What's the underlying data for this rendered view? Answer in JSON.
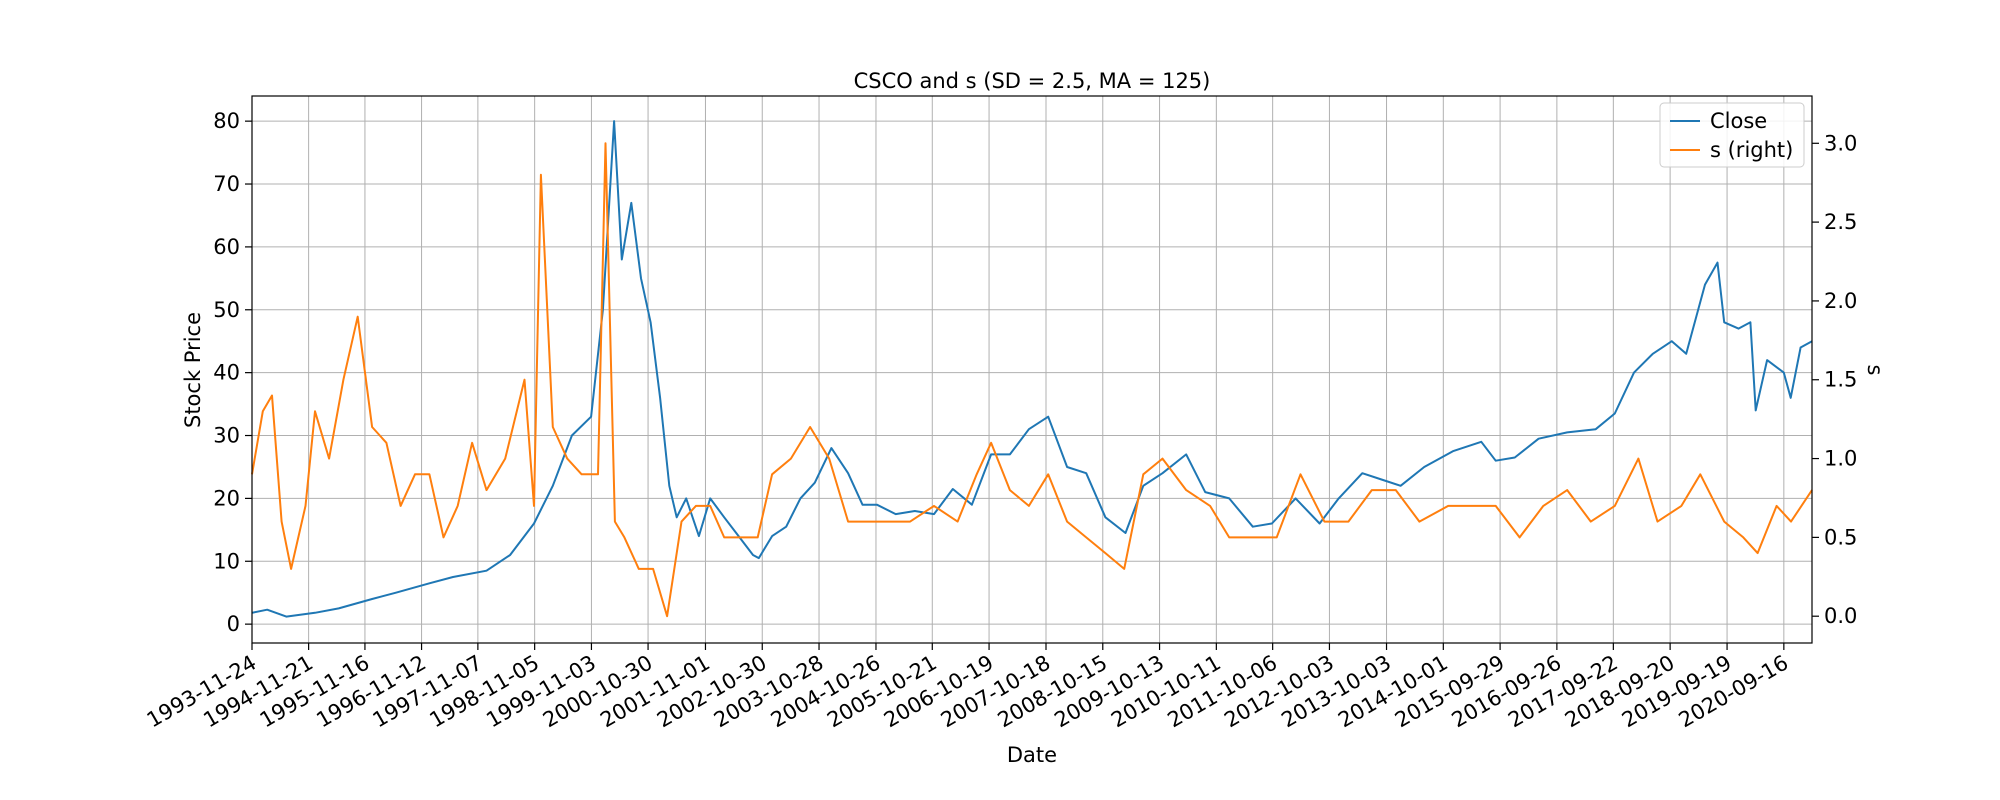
{
  "chart_data": {
    "type": "line",
    "title": "CSCO and s (SD = 2.5, MA = 125)",
    "xlabel": "Date",
    "ylabel": "Stock Price",
    "ylabel_right": "s",
    "xlim": [
      "1993-11-24",
      "2021-03-15"
    ],
    "ylim": [
      -3,
      84
    ],
    "ylim_right": [
      -0.17,
      3.3
    ],
    "y_ticks": [
      0,
      10,
      20,
      30,
      40,
      50,
      60,
      70,
      80
    ],
    "y_ticks_right": [
      0.0,
      0.5,
      1.0,
      1.5,
      2.0,
      2.5,
      3.0
    ],
    "y_tick_labels_right": [
      "0.0",
      "0.5",
      "1.0",
      "1.5",
      "2.0",
      "2.5",
      "3.0"
    ],
    "x_tick_labels": [
      "1993-11-24",
      "1994-11-21",
      "1995-11-16",
      "1996-11-12",
      "1997-11-07",
      "1998-11-05",
      "1999-11-03",
      "2000-10-30",
      "2001-11-01",
      "2002-10-30",
      "2003-10-28",
      "2004-10-26",
      "2005-10-21",
      "2006-10-19",
      "2007-10-18",
      "2008-10-15",
      "2009-10-13",
      "2010-10-11",
      "2011-10-06",
      "2012-10-03",
      "2013-10-03",
      "2014-10-01",
      "2015-09-29",
      "2016-09-26",
      "2017-09-22",
      "2018-09-20",
      "2019-09-19",
      "2020-09-16"
    ],
    "grid": true,
    "legend_position": "top-right",
    "series": [
      {
        "name": "Close",
        "axis": "left",
        "color": "#1f77b4",
        "x": [
          "1993-11-24",
          "1994-03-01",
          "1994-07-01",
          "1995-01-01",
          "1995-06-01",
          "1996-01-01",
          "1996-06-01",
          "1997-01-01",
          "1997-06-01",
          "1998-01-01",
          "1998-06-01",
          "1998-11-01",
          "1999-03-01",
          "1999-07-01",
          "1999-11-01",
          "2000-01-15",
          "2000-03-27",
          "2000-05-15",
          "2000-07-15",
          "2000-09-15",
          "2000-11-15",
          "2001-01-15",
          "2001-03-15",
          "2001-05-01",
          "2001-07-01",
          "2001-09-20",
          "2001-12-01",
          "2002-03-01",
          "2002-06-01",
          "2002-09-01",
          "2002-10-08",
          "2003-01-01",
          "2003-04-01",
          "2003-07-01",
          "2003-10-01",
          "2004-01-15",
          "2004-05-01",
          "2004-08-01",
          "2004-11-01",
          "2005-03-01",
          "2005-07-01",
          "2005-11-01",
          "2006-03-01",
          "2006-07-01",
          "2006-11-01",
          "2007-03-01",
          "2007-07-01",
          "2007-11-01",
          "2008-03-01",
          "2008-07-01",
          "2008-11-01",
          "2009-03-09",
          "2009-07-01",
          "2009-11-01",
          "2010-04-01",
          "2010-08-01",
          "2011-01-01",
          "2011-06-01",
          "2011-10-01",
          "2012-03-01",
          "2012-08-01",
          "2012-12-01",
          "2013-05-01",
          "2013-09-01",
          "2014-01-01",
          "2014-06-01",
          "2014-12-01",
          "2015-06-01",
          "2015-09-01",
          "2016-01-01",
          "2016-06-01",
          "2016-12-01",
          "2017-06-01",
          "2017-10-01",
          "2018-02-01",
          "2018-06-01",
          "2018-10-01",
          "2019-01-01",
          "2019-05-01",
          "2019-07-20",
          "2019-09-01",
          "2019-12-01",
          "2020-02-15",
          "2020-03-20",
          "2020-06-01",
          "2020-09-16",
          "2020-10-30",
          "2021-01-01",
          "2021-03-15"
        ],
        "values": [
          1.8,
          2.3,
          1.2,
          1.8,
          2.5,
          4.0,
          5.0,
          6.5,
          7.5,
          8.5,
          11.0,
          16.0,
          22.0,
          30.0,
          33.0,
          50.0,
          80.0,
          58.0,
          67.0,
          55.0,
          48.0,
          36.0,
          22.0,
          17.0,
          20.0,
          14.0,
          20.0,
          17.0,
          14.0,
          11.0,
          10.5,
          14.0,
          15.5,
          20.0,
          22.5,
          28.0,
          24.0,
          19.0,
          19.0,
          17.5,
          18.0,
          17.5,
          21.5,
          19.0,
          27.0,
          27.0,
          31.0,
          33.0,
          25.0,
          24.0,
          17.0,
          14.5,
          22.0,
          24.0,
          27.0,
          21.0,
          20.0,
          15.5,
          16.0,
          20.0,
          16.0,
          20.0,
          24.0,
          23.0,
          22.0,
          25.0,
          27.5,
          29.0,
          26.0,
          26.5,
          29.5,
          30.5,
          31.0,
          33.5,
          40.0,
          43.0,
          45.0,
          43.0,
          54.0,
          57.5,
          48.0,
          47.0,
          48.0,
          34.0,
          42.0,
          40.0,
          36.0,
          44.0,
          45.0
        ]
      },
      {
        "name": "s (right)",
        "axis": "right",
        "color": "#ff7f0e",
        "x": [
          "1993-11-24",
          "1994-02-01",
          "1994-04-01",
          "1994-06-01",
          "1994-08-01",
          "1994-11-01",
          "1995-01-01",
          "1995-04-01",
          "1995-07-01",
          "1995-10-01",
          "1996-01-01",
          "1996-04-01",
          "1996-07-01",
          "1996-10-01",
          "1997-01-01",
          "1997-04-01",
          "1997-07-01",
          "1997-10-01",
          "1998-01-01",
          "1998-05-01",
          "1998-09-01",
          "1998-11-01",
          "1998-12-15",
          "1999-03-01",
          "1999-06-01",
          "1999-09-01",
          "1999-12-15",
          "2000-02-01",
          "2000-04-01",
          "2000-06-01",
          "2000-09-01",
          "2000-12-01",
          "2001-03-01",
          "2001-06-01",
          "2001-09-01",
          "2001-12-01",
          "2002-03-01",
          "2002-07-01",
          "2002-10-01",
          "2003-01-01",
          "2003-05-01",
          "2003-09-01",
          "2004-01-01",
          "2004-05-01",
          "2004-09-01",
          "2005-01-01",
          "2005-06-01",
          "2005-11-01",
          "2006-04-01",
          "2006-08-01",
          "2006-11-01",
          "2007-03-01",
          "2007-07-01",
          "2007-11-01",
          "2008-03-01",
          "2008-07-01",
          "2008-11-01",
          "2009-03-01",
          "2009-07-01",
          "2009-11-01",
          "2010-04-01",
          "2010-09-01",
          "2011-01-01",
          "2011-06-01",
          "2011-11-01",
          "2012-04-01",
          "2012-09-01",
          "2013-02-01",
          "2013-07-01",
          "2013-12-01",
          "2014-05-01",
          "2014-11-01",
          "2015-04-01",
          "2015-09-01",
          "2016-02-01",
          "2016-07-01",
          "2016-12-01",
          "2017-05-01",
          "2017-10-01",
          "2018-03-01",
          "2018-07-01",
          "2018-12-01",
          "2019-04-01",
          "2019-09-01",
          "2020-01-01",
          "2020-04-01",
          "2020-08-01",
          "2020-11-01",
          "2021-03-15"
        ],
        "values": [
          0.9,
          1.3,
          1.4,
          0.6,
          0.3,
          0.7,
          1.3,
          1.0,
          1.5,
          1.9,
          1.2,
          1.1,
          0.7,
          0.9,
          0.9,
          0.5,
          0.7,
          1.1,
          0.8,
          1.0,
          1.5,
          0.7,
          2.8,
          1.2,
          1.0,
          0.9,
          0.9,
          3.0,
          0.6,
          0.5,
          0.3,
          0.3,
          0.0,
          0.6,
          0.7,
          0.7,
          0.5,
          0.5,
          0.5,
          0.9,
          1.0,
          1.2,
          1.0,
          0.6,
          0.6,
          0.6,
          0.6,
          0.7,
          0.6,
          0.9,
          1.1,
          0.8,
          0.7,
          0.9,
          0.6,
          0.5,
          0.4,
          0.3,
          0.9,
          1.0,
          0.8,
          0.7,
          0.5,
          0.5,
          0.5,
          0.9,
          0.6,
          0.6,
          0.8,
          0.8,
          0.6,
          0.7,
          0.7,
          0.7,
          0.5,
          0.7,
          0.8,
          0.6,
          0.7,
          1.0,
          0.6,
          0.7,
          0.9,
          0.6,
          0.5,
          0.4,
          0.7,
          0.6,
          0.8
        ]
      }
    ]
  }
}
